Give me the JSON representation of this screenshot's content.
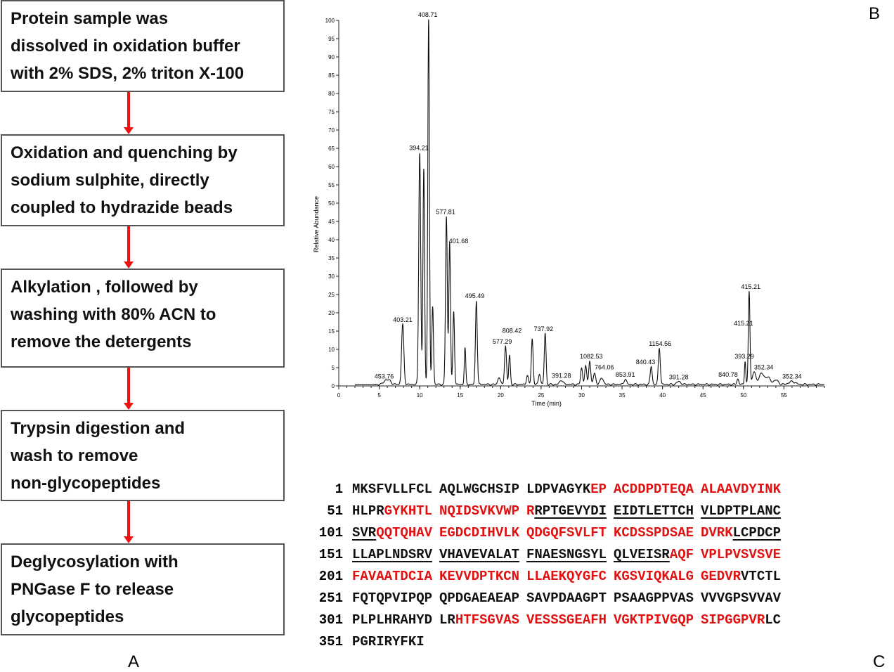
{
  "panel_a": {
    "label": "A",
    "steps": [
      "Protein sample was\ndissolved in oxidation buffer\nwith 2% SDS, 2% triton X-100",
      "Oxidation and quenching by\nsodium sulphite, directly\ncoupled to hydrazide beads",
      "Alkylation , followed by\nwashing  with 80% ACN to\nremove the detergents",
      "Trypsin digestion and\nwash to remove\nnon-glycopeptides",
      "Deglycosylation with\nPNGase F to release\nglycopeptides"
    ]
  },
  "panel_b": {
    "label": "B"
  },
  "panel_c": {
    "label": "C",
    "colors": {
      "red": "#e11111",
      "black": "#111111"
    },
    "rows": [
      {
        "num": "1",
        "blocks": [
          [
            {
              "t": "MKSFVLLFCL",
              "c": "k"
            }
          ],
          [
            {
              "t": "AQLWGCHSIP",
              "c": "k"
            }
          ],
          [
            {
              "t": "LDPVAGYK",
              "c": "k"
            },
            {
              "t": "EP",
              "c": "r"
            }
          ],
          [
            {
              "t": "ACDDPDTEQA",
              "c": "r"
            }
          ],
          [
            {
              "t": "ALAAVDYINK",
              "c": "r"
            }
          ]
        ]
      },
      {
        "num": "51",
        "blocks": [
          [
            {
              "t": "HLPR",
              "c": "k"
            },
            {
              "t": "GYKHTL",
              "c": "r"
            }
          ],
          [
            {
              "t": "NQIDSVKVWP",
              "c": "r"
            }
          ],
          [
            {
              "t": "R",
              "c": "r"
            },
            {
              "t": "RPTGEVYDI",
              "c": "k",
              "u": true
            }
          ],
          [
            {
              "t": "EIDTLETTCH",
              "c": "k",
              "u": true
            }
          ],
          [
            {
              "t": "VLDPTPLANC",
              "c": "k",
              "u": true
            }
          ]
        ]
      },
      {
        "num": "101",
        "blocks": [
          [
            {
              "t": "SVR",
              "c": "k",
              "u": true
            },
            {
              "t": "QQTQHAV",
              "c": "r"
            }
          ],
          [
            {
              "t": "EGDCDIHVLK",
              "c": "r"
            }
          ],
          [
            {
              "t": "QDGQFSVLFT",
              "c": "r"
            }
          ],
          [
            {
              "t": "KCDSSPDSAE",
              "c": "r"
            }
          ],
          [
            {
              "t": "DVRK",
              "c": "r"
            },
            {
              "t": "LCPDCP",
              "c": "k",
              "u": true
            }
          ]
        ]
      },
      {
        "num": "151",
        "blocks": [
          [
            {
              "t": "LLAPLNDSRV",
              "c": "k",
              "u": true
            }
          ],
          [
            {
              "t": "VHAVEVALAT",
              "c": "k",
              "u": true
            }
          ],
          [
            {
              "t": "FNAESNGSYL",
              "c": "k",
              "u": true
            }
          ],
          [
            {
              "t": "QLVEISR",
              "c": "k",
              "u": true
            },
            {
              "t": "AQF",
              "c": "r"
            }
          ],
          [
            {
              "t": "VPLPVSVSVE",
              "c": "r"
            }
          ]
        ]
      },
      {
        "num": "201",
        "blocks": [
          [
            {
              "t": "FAVAATDCIA",
              "c": "r"
            }
          ],
          [
            {
              "t": "KEVVDPTKCN",
              "c": "r"
            }
          ],
          [
            {
              "t": "LLAEKQYGFC",
              "c": "r"
            }
          ],
          [
            {
              "t": "KGSVIQKALG",
              "c": "r"
            }
          ],
          [
            {
              "t": "GEDVR",
              "c": "r"
            },
            {
              "t": "VTCTL",
              "c": "k"
            }
          ]
        ]
      },
      {
        "num": "251",
        "blocks": [
          [
            {
              "t": "FQTQPVIPQP",
              "c": "k"
            }
          ],
          [
            {
              "t": "QPDGAEAEAP",
              "c": "k"
            }
          ],
          [
            {
              "t": "SAVPDAAGPT",
              "c": "k"
            }
          ],
          [
            {
              "t": "PSAAGPPVAS",
              "c": "k"
            }
          ],
          [
            {
              "t": "VVVGPSVVAV",
              "c": "k"
            }
          ]
        ]
      },
      {
        "num": "301",
        "blocks": [
          [
            {
              "t": "PLPLHRAHYD",
              "c": "k"
            }
          ],
          [
            {
              "t": "LR",
              "c": "k"
            },
            {
              "t": "HTFSGVAS",
              "c": "r"
            }
          ],
          [
            {
              "t": "VESSSGEAFH",
              "c": "r"
            }
          ],
          [
            {
              "t": "VGKTPIVGQP",
              "c": "r"
            }
          ],
          [
            {
              "t": "SIPGGPVR",
              "c": "r"
            },
            {
              "t": "LC",
              "c": "k"
            }
          ]
        ]
      },
      {
        "num": "351",
        "blocks": [
          [
            {
              "t": "PGRIRYFKI",
              "c": "k"
            }
          ]
        ]
      }
    ]
  },
  "chart_data": {
    "type": "line",
    "title": "",
    "xlabel": "Time (min)",
    "ylabel": "Relative Abundance",
    "xlim": [
      0,
      60
    ],
    "ylim": [
      0,
      100
    ],
    "xticks": [
      0,
      5,
      10,
      15,
      20,
      25,
      30,
      35,
      40,
      45,
      50,
      55
    ],
    "yticks": [
      0,
      5,
      10,
      15,
      20,
      25,
      30,
      35,
      40,
      45,
      50,
      55,
      60,
      65,
      70,
      75,
      80,
      85,
      90,
      95,
      100
    ],
    "grid": false,
    "line_color": "#111111",
    "peaks": [
      {
        "t": 5.8,
        "h": 1.2,
        "w": 0.25
      },
      {
        "t": 6.3,
        "h": 1.0,
        "w": 0.2
      },
      {
        "t": 7.9,
        "h": 16.5,
        "w": 0.14
      },
      {
        "t": 10.0,
        "h": 63.5,
        "w": 0.12
      },
      {
        "t": 10.5,
        "h": 59.0,
        "w": 0.1
      },
      {
        "t": 11.1,
        "h": 100.0,
        "w": 0.1
      },
      {
        "t": 11.6,
        "h": 21.5,
        "w": 0.1
      },
      {
        "t": 13.3,
        "h": 46.0,
        "w": 0.11
      },
      {
        "t": 13.7,
        "h": 39.0,
        "w": 0.1
      },
      {
        "t": 14.2,
        "h": 20.0,
        "w": 0.1
      },
      {
        "t": 15.6,
        "h": 10.0,
        "w": 0.09
      },
      {
        "t": 17.0,
        "h": 23.0,
        "w": 0.11
      },
      {
        "t": 19.8,
        "h": 2.0,
        "w": 0.15
      },
      {
        "t": 20.6,
        "h": 10.5,
        "w": 0.12
      },
      {
        "t": 21.1,
        "h": 8.0,
        "w": 0.1
      },
      {
        "t": 23.3,
        "h": 2.5,
        "w": 0.12
      },
      {
        "t": 23.9,
        "h": 12.5,
        "w": 0.11
      },
      {
        "t": 24.8,
        "h": 3.0,
        "w": 0.12
      },
      {
        "t": 25.5,
        "h": 14.0,
        "w": 0.11
      },
      {
        "t": 27.5,
        "h": 1.2,
        "w": 0.2
      },
      {
        "t": 30.0,
        "h": 4.5,
        "w": 0.12
      },
      {
        "t": 30.5,
        "h": 5.0,
        "w": 0.12
      },
      {
        "t": 31.0,
        "h": 6.5,
        "w": 0.12
      },
      {
        "t": 31.6,
        "h": 3.0,
        "w": 0.15
      },
      {
        "t": 32.5,
        "h": 1.8,
        "w": 0.2
      },
      {
        "t": 35.4,
        "h": 1.5,
        "w": 0.15
      },
      {
        "t": 38.6,
        "h": 5.0,
        "w": 0.12
      },
      {
        "t": 39.6,
        "h": 10.0,
        "w": 0.12
      },
      {
        "t": 42.0,
        "h": 0.8,
        "w": 0.25
      },
      {
        "t": 49.3,
        "h": 1.5,
        "w": 0.12
      },
      {
        "t": 50.2,
        "h": 6.5,
        "w": 0.08
      },
      {
        "t": 50.7,
        "h": 25.5,
        "w": 0.1
      },
      {
        "t": 51.3,
        "h": 3.5,
        "w": 0.2
      },
      {
        "t": 52.2,
        "h": 3.0,
        "w": 0.3
      },
      {
        "t": 53.0,
        "h": 2.0,
        "w": 0.3
      },
      {
        "t": 54.0,
        "h": 1.2,
        "w": 0.3
      },
      {
        "t": 56.0,
        "h": 0.8,
        "w": 0.4
      }
    ],
    "annotations": [
      {
        "t": 5.6,
        "y": 2.0,
        "text": "453.76"
      },
      {
        "t": 7.9,
        "y": 17.5,
        "text": "403.21"
      },
      {
        "t": 9.9,
        "y": 64.5,
        "text": "394.21"
      },
      {
        "t": 11.0,
        "y": 101.0,
        "text": "408.71"
      },
      {
        "t": 13.2,
        "y": 47.0,
        "text": "577.81"
      },
      {
        "t": 14.8,
        "y": 39.0,
        "text": "401.68"
      },
      {
        "t": 16.8,
        "y": 24.0,
        "text": "495.49"
      },
      {
        "t": 20.2,
        "y": 11.5,
        "text": "577.29"
      },
      {
        "t": 21.4,
        "y": 14.5,
        "text": "808.42"
      },
      {
        "t": 25.3,
        "y": 15.0,
        "text": "737.92"
      },
      {
        "t": 27.5,
        "y": 2.2,
        "text": "391.28"
      },
      {
        "t": 31.2,
        "y": 7.5,
        "text": "1082.53"
      },
      {
        "t": 32.8,
        "y": 4.5,
        "text": "764.06"
      },
      {
        "t": 35.4,
        "y": 2.5,
        "text": "853.91"
      },
      {
        "t": 37.9,
        "y": 6.0,
        "text": "840.43"
      },
      {
        "t": 39.7,
        "y": 11.0,
        "text": "1154.56"
      },
      {
        "t": 42.0,
        "y": 1.8,
        "text": "391.28"
      },
      {
        "t": 48.1,
        "y": 2.5,
        "text": "840.78"
      },
      {
        "t": 50.1,
        "y": 7.5,
        "text": "393.29"
      },
      {
        "t": 50.0,
        "y": 16.5,
        "text": "415.21"
      },
      {
        "t": 50.9,
        "y": 26.5,
        "text": "415.21"
      },
      {
        "t": 52.5,
        "y": 4.5,
        "text": "352.34"
      },
      {
        "t": 56.0,
        "y": 2.0,
        "text": "352.34"
      }
    ]
  }
}
